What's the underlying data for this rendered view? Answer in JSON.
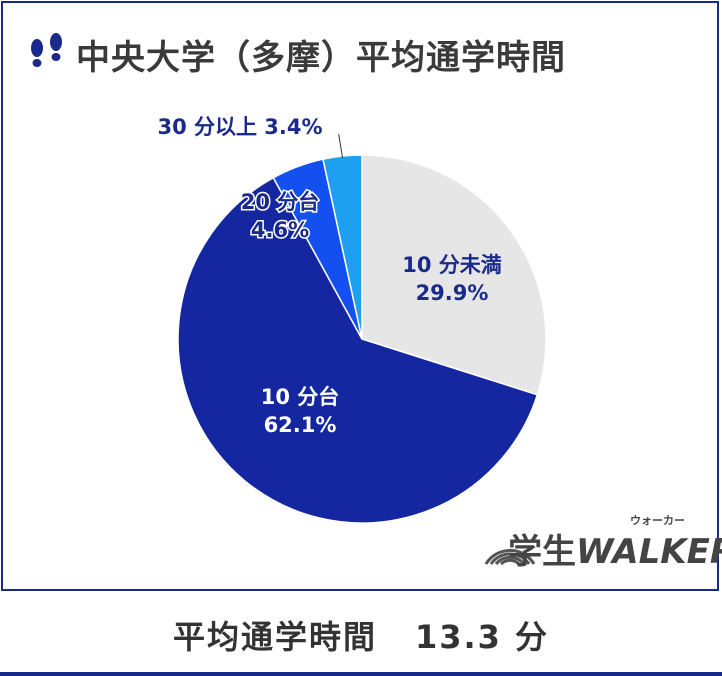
{
  "title": "中央大学（多摩）平均通学時間",
  "footer": {
    "label": "平均通学時間",
    "value": "13.3 分"
  },
  "logo": {
    "main_jp": "学生",
    "main_en": "WALKER",
    "kana": "ウォーカー"
  },
  "colors": {
    "frame": "#1a2a8a",
    "title_text": "#3a3a3a",
    "label_dark": "#1a2a8a",
    "label_light": "#ffffff"
  },
  "chart_data": {
    "type": "pie",
    "start_angle_deg": 0,
    "direction": "clockwise",
    "slices": [
      {
        "label": "10 分未満",
        "value": 29.9,
        "value_text": "29.9%",
        "color": "#e6e6e6",
        "text_color": "#1a2a8a"
      },
      {
        "label": "10 分台",
        "value": 62.1,
        "value_text": "62.1%",
        "color": "#1426a0",
        "text_color": "#ffffff"
      },
      {
        "label": "20 分台",
        "value": 4.6,
        "value_text": "4.6%",
        "color": "#1450f0",
        "text_color": "#1a2a8a"
      },
      {
        "label": "30 分以上",
        "value": 3.4,
        "value_text": "3.4%",
        "color": "#1ea0f0",
        "text_color": "#1a2a8a"
      }
    ]
  }
}
